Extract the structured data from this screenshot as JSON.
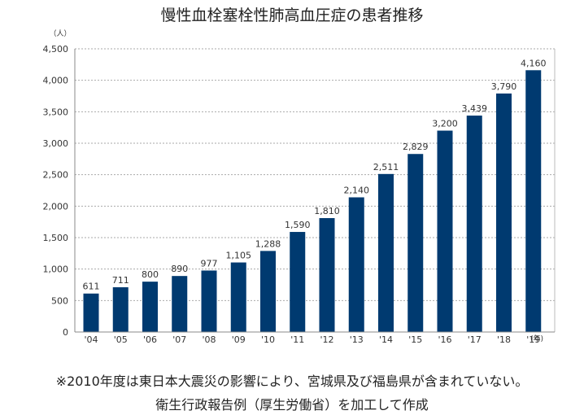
{
  "chart_data": {
    "type": "bar",
    "title": "慢性血栓塞栓性肺高血圧症の患者推移",
    "ylabel": "（人）",
    "xlabel": "(年)",
    "ylim": [
      0,
      4500
    ],
    "yticks": [
      "0",
      "500",
      "1,000",
      "1,500",
      "2,000",
      "2,500",
      "3,000",
      "3,500",
      "4,000",
      "4,500"
    ],
    "ytick_values": [
      0,
      500,
      1000,
      1500,
      2000,
      2500,
      3000,
      3500,
      4000,
      4500
    ],
    "categories": [
      "'04",
      "'05",
      "'06",
      "'07",
      "'08",
      "'09",
      "'10",
      "'11",
      "'12",
      "'13",
      "'14",
      "'15",
      "'16",
      "'17",
      "'18",
      "'19"
    ],
    "values": [
      611,
      711,
      800,
      890,
      977,
      1105,
      1288,
      1590,
      1810,
      2140,
      2511,
      2829,
      3200,
      3439,
      3790,
      4160
    ],
    "value_labels": [
      "611",
      "711",
      "800",
      "890",
      "977",
      "1,105",
      "1,288",
      "1,590",
      "1,810",
      "2,140",
      "2,511",
      "2,829",
      "3,200",
      "3,439",
      "3,790",
      "4,160"
    ],
    "grid": "horizontal dotted",
    "bar_color": "#003a70"
  },
  "footnotes": {
    "note": "※2010年度は東日本大震災の影響により、宮城県及び福島県が含まれていない。",
    "source": "衛生行政報告例（厚生労働省）を加工して作成"
  }
}
